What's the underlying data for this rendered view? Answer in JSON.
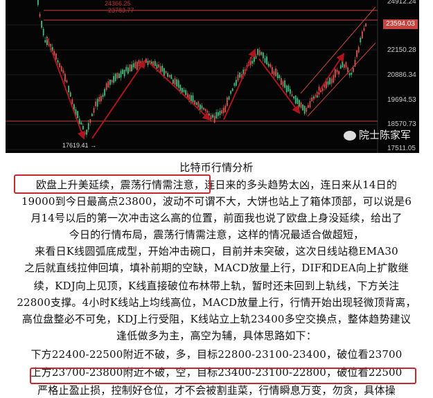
{
  "chart_image": {
    "axis_labels": [
      "24912.24",
      "23594.03",
      "22150.28",
      "20886.34",
      "19694.53",
      "18570.73",
      "17511.05"
    ],
    "current_price": "23594.03",
    "level_labels": [
      "24366.25",
      "23783.77"
    ],
    "low_label": "17619.41 →",
    "watermark": "院士陈家军",
    "colors": {
      "up": "#d9534f",
      "down": "#3fbf7f",
      "arrow": "#b0141c",
      "line": "#c8453f",
      "background": "#050505"
    }
  },
  "article": {
    "title": "比特币行情分析",
    "lines": [
      "欧盘上升美延续，震荡行情需注意，连日来的多头趋势太凶，连日来从14日的",
      "19000到今日最高点23800，波动不可谓不大，大饼也站上了箱体顶部，可以说是6",
      "月14号以后的第一次冲击这么高的位置，前面我也说了欧盘上身没延续，给出了",
      "今日的行情布局，震荡行情需注意，这样的情况最适合做超短，",
      "来看日K线圆弧底成型，开始冲击碗口，目前并未突破，这次日线站稳EMA30",
      "之后就直线拉伸回填，填补前期的空缺，MACD放量上行，DIF和DEA向上扩散继",
      "续，KDJ向上见顶，K线直接破位布林带上轨，暂时还未回到上轨线，下方关注",
      "22800支撑。4小时K线站上均线高位，MACD放量上行，行情开始出现轻微顶背离，",
      "高位盘整必不可免，KDJ上行受阻，K线站立上轨23400多空交换点，整体趋势建议",
      "逢低做多为主，高空为辅，具体思路如下：",
      "下方22400-22500附近不破，多，目标22800-23100-23400，破位看23700",
      "上方23700-23800附近不破，空，目标23400-23100-22800，破位看22500",
      "严格止盈止损，控制好仓位，才不会被割韭菜，行情瞬息万变，勿贪，具体操"
    ]
  }
}
